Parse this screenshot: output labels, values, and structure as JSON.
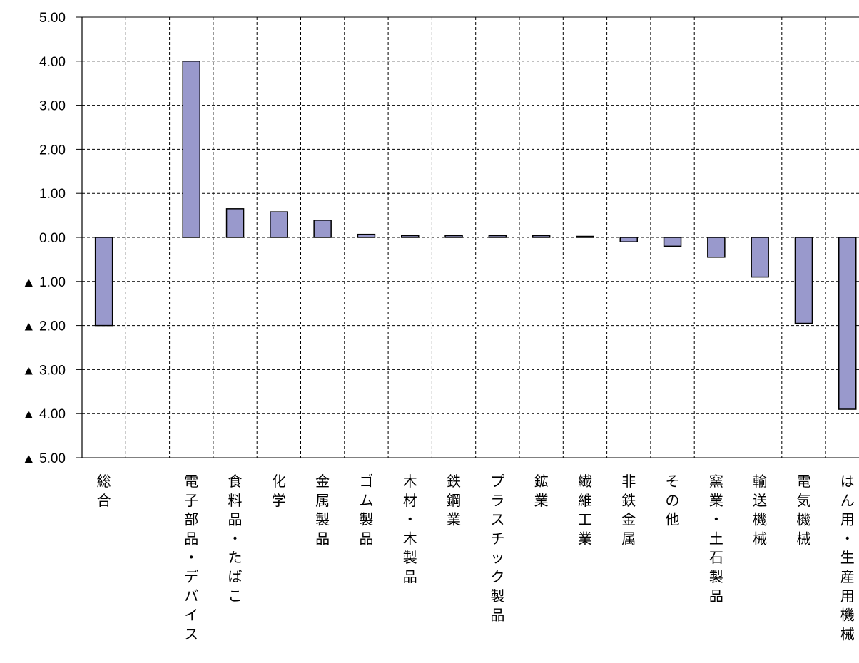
{
  "chart_data": {
    "type": "bar",
    "categories": [
      "総合",
      "",
      "電子部品・デバイス",
      "食料品・たばこ",
      "化学",
      "金属製品",
      "ゴム製品",
      "木材・木製品",
      "鉄鋼業",
      "プラスチック製品",
      "鉱業",
      "繊維工業",
      "非鉄金属",
      "その他",
      "窯業・土石製品",
      "輸送機械",
      "電気機械",
      "はん用・生産用機械"
    ],
    "values": [
      -2.0,
      null,
      4.0,
      0.65,
      0.58,
      0.39,
      0.07,
      0.04,
      0.04,
      0.04,
      0.04,
      0.0,
      -0.1,
      -0.2,
      -0.45,
      -0.9,
      -1.95,
      -3.9
    ],
    "ylim": [
      -5,
      5
    ],
    "ytick_labels": [
      "5.00",
      "4.00",
      "3.00",
      "2.00",
      "1.00",
      "0.00",
      "▲ 1.00",
      "▲ 2.00",
      "▲ 3.00",
      "▲ 4.00",
      "▲ 5.00"
    ],
    "grid": true,
    "bar_color": "#9999cc"
  }
}
